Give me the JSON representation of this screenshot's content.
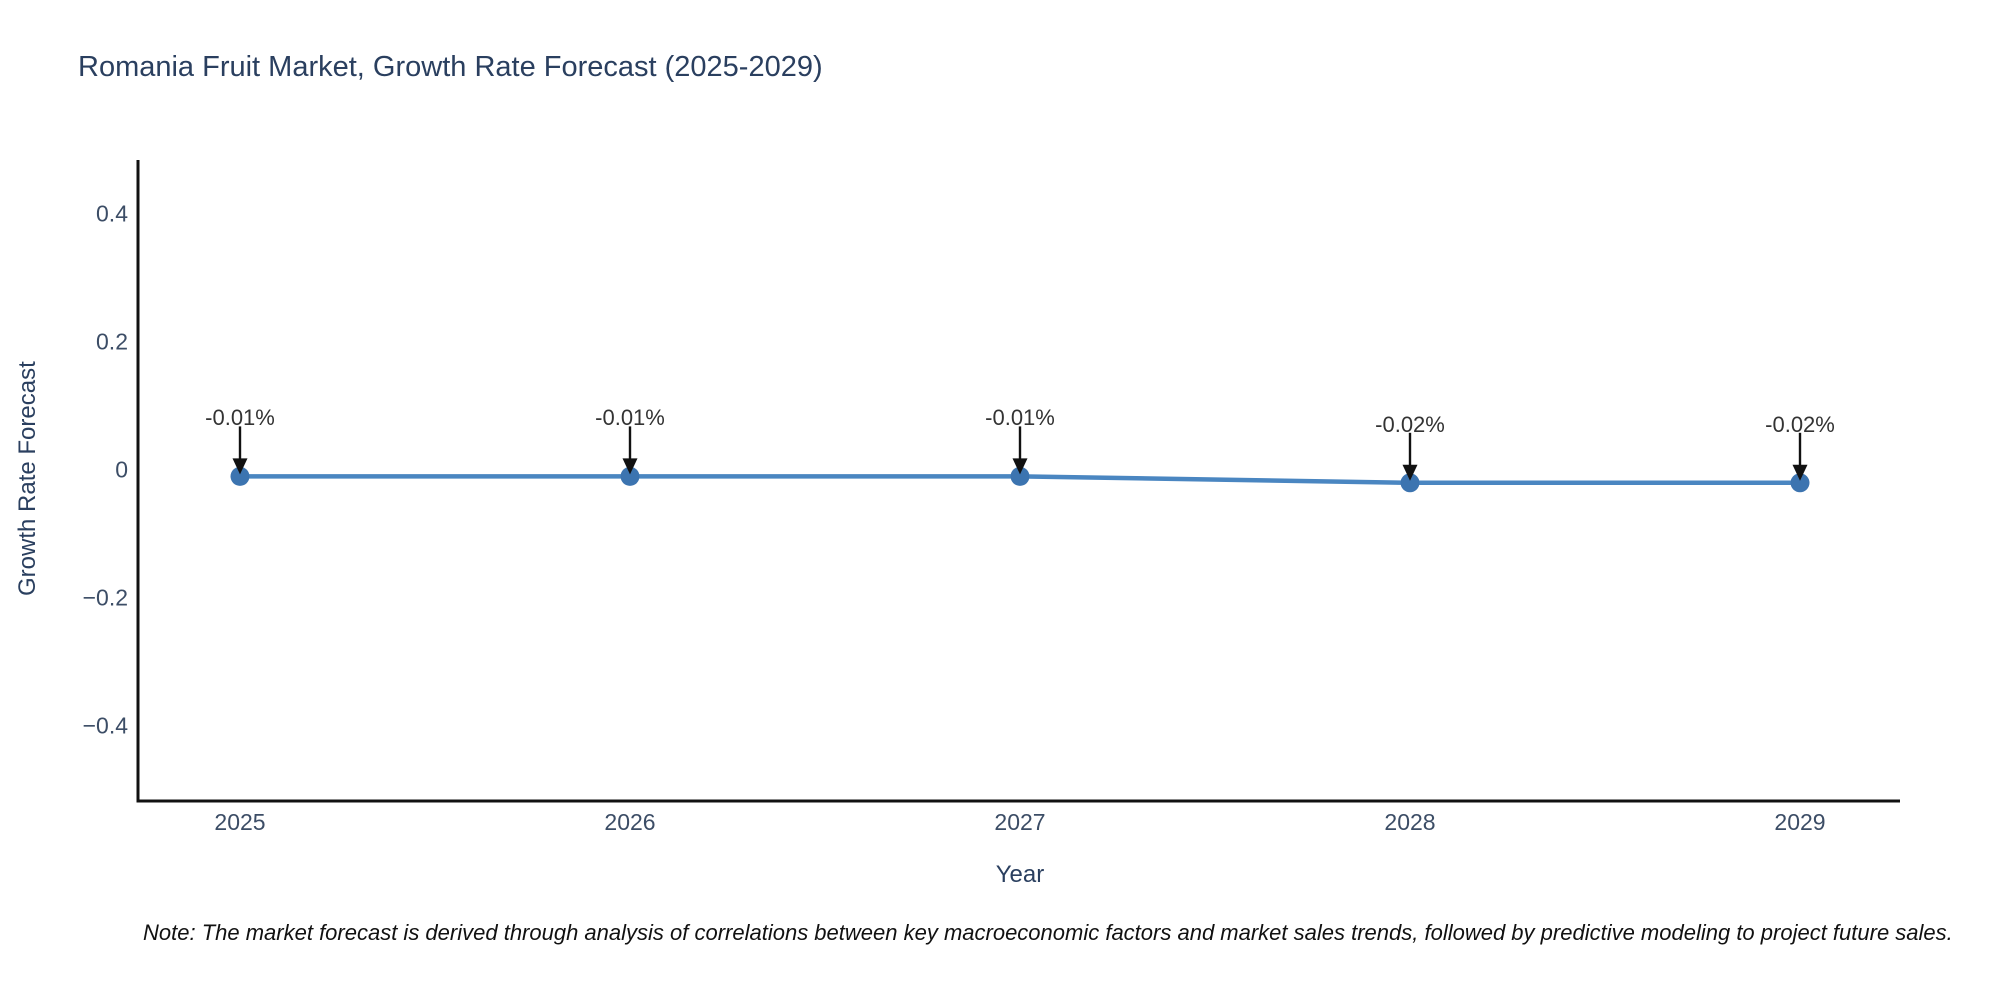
{
  "title": "Romania Fruit Market, Growth Rate Forecast (2025-2029)",
  "note": "Note: The market forecast is derived through analysis of correlations between key macroeconomic factors and market sales trends, followed by predictive modeling to project future sales.",
  "chart_data": {
    "type": "line",
    "title": "Romania Fruit Market, Growth Rate Forecast (2025-2029)",
    "xlabel": "Year",
    "ylabel": "Growth Rate Forecast",
    "x": [
      2025,
      2026,
      2027,
      2028,
      2029
    ],
    "values": [
      -0.01,
      -0.01,
      -0.01,
      -0.02,
      -0.02
    ],
    "annotations": [
      "-0.01%",
      "-0.01%",
      "-0.01%",
      "-0.02%",
      "-0.02%"
    ],
    "xtick_labels": [
      "2025",
      "2026",
      "2027",
      "2028",
      "2029"
    ],
    "yticks": [
      0.4,
      0.2,
      0,
      -0.2,
      -0.4
    ],
    "ytick_labels": [
      "0.4",
      "0.2",
      "0",
      "−0.2",
      "−0.4"
    ],
    "ylim": [
      -0.5,
      0.5
    ],
    "grid": false,
    "legend_position": "none",
    "colors": {
      "line": "#4a86c1",
      "marker": "#3c74b0",
      "axis": "#111111",
      "arrow": "#111111",
      "text": "#2a3f5f",
      "tick_text": "#3c4d66",
      "annotation_text": "#333333"
    }
  }
}
